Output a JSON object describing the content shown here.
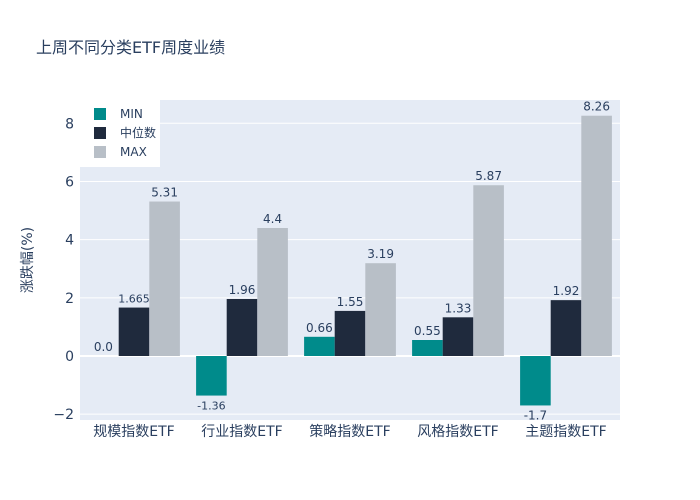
{
  "chart_data": {
    "type": "bar",
    "title": "上周不同分类ETF周度业绩",
    "xlabel": "",
    "ylabel": "涨跌幅(%)",
    "ylim": [
      -2.2,
      8.8
    ],
    "yticks": [
      -2,
      0,
      2,
      4,
      6,
      8
    ],
    "ytick_labels": [
      "−2",
      "0",
      "2",
      "4",
      "6",
      "8"
    ],
    "grid": true,
    "legend_position": "top-left",
    "categories": [
      "规模指数ETF",
      "行业指数ETF",
      "策略指数ETF",
      "风格指数ETF",
      "主题指数ETF"
    ],
    "series": [
      {
        "name": "MIN",
        "color": "#008b8b",
        "values": [
          0.0,
          -1.36,
          0.66,
          0.55,
          -1.7
        ],
        "labels": [
          "0.0",
          "-1.36",
          "0.66",
          "0.55",
          "-1.7"
        ]
      },
      {
        "name": "中位数",
        "color": "#1f2a3d",
        "values": [
          1.665,
          1.96,
          1.55,
          1.33,
          1.92
        ],
        "labels": [
          "1.665",
          "1.96",
          "1.55",
          "1.33",
          "1.92"
        ]
      },
      {
        "name": "MAX",
        "color": "#b8bfc7",
        "values": [
          5.31,
          4.4,
          3.19,
          5.87,
          8.26
        ],
        "labels": [
          "5.31",
          "4.4",
          "3.19",
          "5.87",
          "8.26"
        ]
      }
    ]
  },
  "colors": {
    "plot_background": "#e5ebf5",
    "grid": "#ffffff",
    "text": "#2a3f5f"
  }
}
